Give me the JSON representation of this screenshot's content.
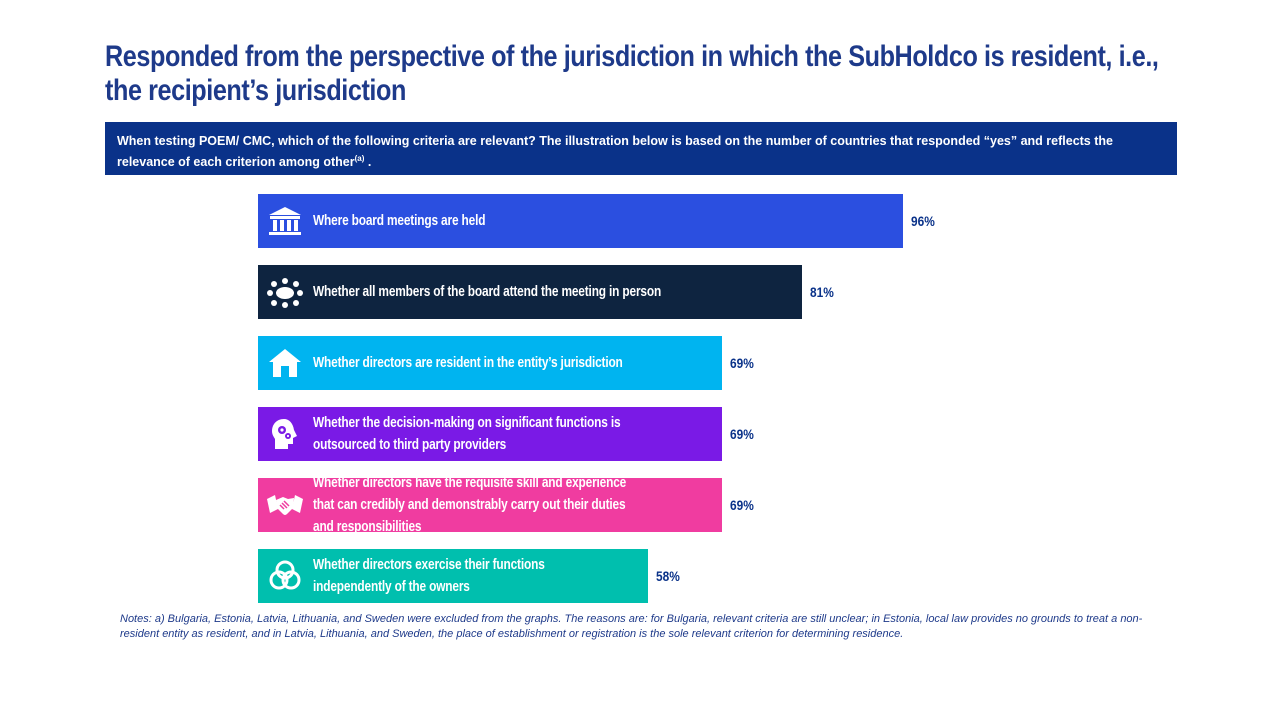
{
  "title": "Responded from the perspective of the jurisdiction in which the SubHoldco is resident, i.e., the recipient’s jurisdiction",
  "question": {
    "text": "When testing POEM/ CMC, which of the following criteria are relevant? The illustration below is based on the number of countries that responded “yes” and reflects the relevance of each criterion among other",
    "superscript": "(a)",
    "suffix": " ."
  },
  "chart_data": {
    "type": "bar",
    "orientation": "horizontal",
    "categories": [
      "Where board meetings are held",
      "Whether all members of the board attend the meeting in person",
      "Whether directors are resident in the entity’s jurisdiction",
      "Whether the decision-making on significant functions is outsourced to third party providers",
      "Whether directors have the requisite skill and experience that can credibly and demonstrably carry out their duties and responsibilities",
      "Whether directors exercise their functions independently of the owners"
    ],
    "values": [
      96,
      81,
      69,
      69,
      69,
      58
    ],
    "value_labels": [
      "96%",
      "81%",
      "69%",
      "69%",
      "69%",
      "58%"
    ],
    "colors": [
      "#2b4fe0",
      "#0e2440",
      "#00b4f0",
      "#7a1ae6",
      "#f03ca0",
      "#00bfae"
    ],
    "icons": [
      "building-columns-icon",
      "meeting-table-icon",
      "house-icon",
      "head-gears-icon",
      "handshake-icon",
      "venn-circles-icon"
    ],
    "xlim": [
      0,
      100
    ],
    "grid": false,
    "legend": "none"
  },
  "notes": "Notes: a) Bulgaria, Estonia, Latvia, Lithuania, and Sweden were excluded from the graphs. The reasons are: for Bulgaria, relevant criteria are still unclear; in Estonia, local law provides no grounds to treat a non-resident entity as resident, and in Latvia, Lithuania, and Sweden, the place of establishment or registration is the sole relevant criterion for determining residence."
}
